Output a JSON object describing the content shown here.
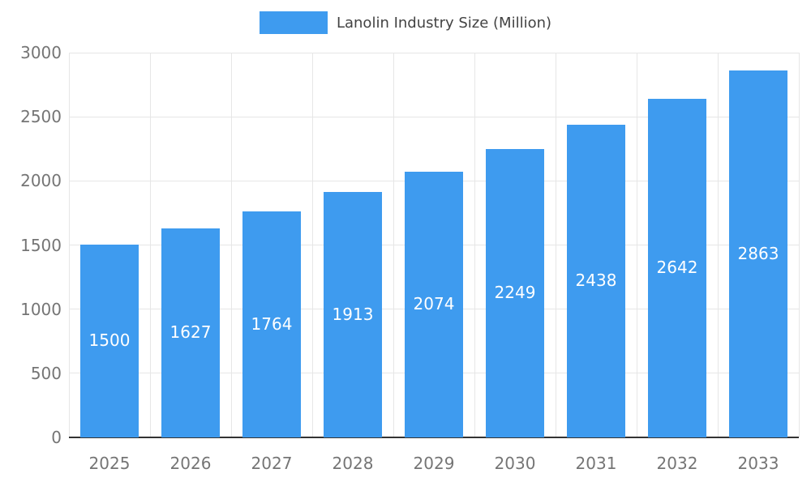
{
  "chart_data": {
    "type": "bar",
    "title": "Lanolin Industry Size (Million)",
    "categories": [
      "2025",
      "2026",
      "2027",
      "2028",
      "2029",
      "2030",
      "2031",
      "2032",
      "2033"
    ],
    "values": [
      1500,
      1627,
      1764,
      1913,
      2074,
      2249,
      2438,
      2642,
      2863
    ],
    "xlabel": "",
    "ylabel": "",
    "ylim": [
      0,
      3000
    ],
    "yticks": [
      0,
      500,
      1000,
      1500,
      2000,
      2500,
      3000
    ],
    "grid": true,
    "legend_position": "top",
    "value_label_style": "inside-centered-white"
  },
  "colors": {
    "bar": "#3e9bef",
    "grid": "#e6e6e6",
    "axis": "#333333",
    "tick_label": "#757575",
    "legend_text": "#434343",
    "value_label": "#ffffff",
    "background": "#ffffff"
  }
}
